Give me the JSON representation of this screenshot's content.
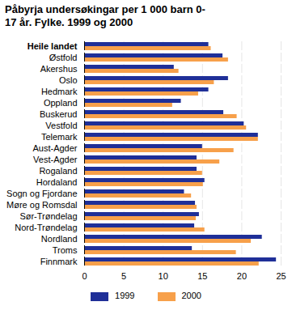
{
  "chart_data": {
    "type": "bar",
    "orientation": "horizontal",
    "title": "Påbyrja undersøkingar per 1 000 barn 0-17 år. Fylke. 1999 og 2000",
    "categories": [
      "Heile landet",
      "Østfold",
      "Akershus",
      "Oslo",
      "Hedmark",
      "Oppland",
      "Buskerud",
      "Vestfold",
      "Telemark",
      "Aust-Agder",
      "Vest-Agder",
      "Rogaland",
      "Hordaland",
      "Sogn og Fjordane",
      "Møre og Romsdal",
      "Sør-Trøndelag",
      "Nord-Trøndelag",
      "Nordland",
      "Troms",
      "Finnmark"
    ],
    "series": [
      {
        "name": "1999",
        "color": "#1f2f98",
        "values": [
          15.8,
          17.6,
          11.4,
          18.3,
          15.8,
          12.3,
          17.7,
          20.3,
          22.1,
          15.0,
          14.3,
          14.3,
          15.3,
          12.7,
          14.1,
          14.6,
          14.0,
          22.6,
          13.7,
          24.4
        ]
      },
      {
        "name": "2000",
        "color": "#f7a04a",
        "values": [
          16.1,
          18.3,
          12.0,
          16.5,
          14.5,
          11.2,
          19.4,
          20.6,
          22.1,
          19.0,
          17.2,
          15.0,
          15.1,
          13.6,
          14.3,
          14.2,
          15.3,
          21.2,
          19.3,
          22.2
        ]
      }
    ],
    "xlim": [
      0,
      25
    ],
    "xticks": [
      0,
      5,
      10,
      15,
      20,
      25
    ],
    "grid": true,
    "legend": "bottom"
  }
}
